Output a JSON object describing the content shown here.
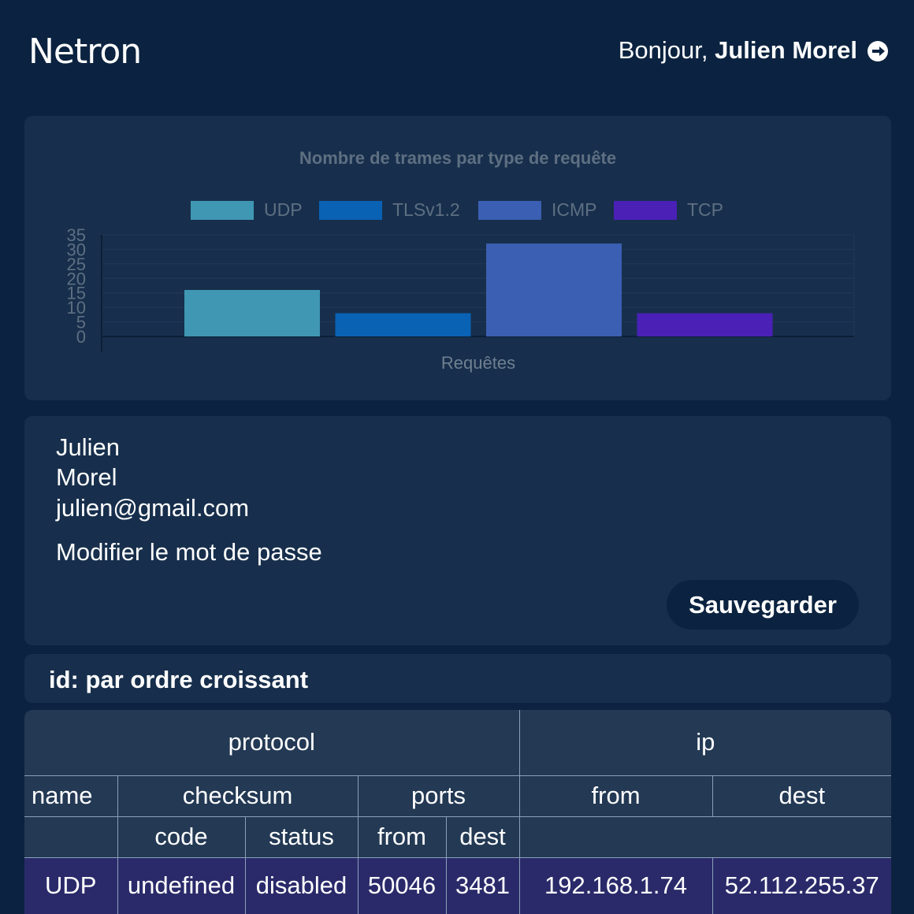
{
  "header": {
    "logo": "Netron",
    "greeting_prefix": "Bonjour, ",
    "user_name": "Julien Morel",
    "logout_icon": "logout-icon"
  },
  "chart_data": {
    "type": "bar",
    "title": "Nombre de trames par type de requête",
    "xlabel": "Requêtes",
    "ylabel": "",
    "ylim": [
      0,
      35
    ],
    "yticks": [
      0,
      5,
      10,
      15,
      20,
      25,
      30,
      35
    ],
    "legend_position": "top",
    "grid": true,
    "series": [
      {
        "name": "UDP",
        "value": 16,
        "color": "#3f97b3"
      },
      {
        "name": "TLSv1.2",
        "value": 8,
        "color": "#0a62b5"
      },
      {
        "name": "ICMP",
        "value": 32,
        "color": "#3b5fb2"
      },
      {
        "name": "TCP",
        "value": 8,
        "color": "#4a20b6"
      }
    ]
  },
  "profile": {
    "first_name": "Julien",
    "last_name": "Morel",
    "email": "julien@gmail.com",
    "change_password_label": "Modifier le mot de passe",
    "save_label": "Sauvegarder"
  },
  "sort": {
    "label": "id: par ordre croissant"
  },
  "table": {
    "group_protocol": "protocol",
    "group_ip": "ip",
    "col_name": "name",
    "col_checksum": "checksum",
    "col_ports": "ports",
    "col_ip_from": "from",
    "col_ip_dest": "dest",
    "sub_code": "code",
    "sub_status": "status",
    "sub_port_from": "from",
    "sub_port_dest": "dest",
    "rows": [
      {
        "name": "UDP",
        "code": "undefined",
        "status": "disabled",
        "port_from": "50046",
        "port_dest": "3481",
        "ip_from": "192.168.1.74",
        "ip_dest": "52.112.255.37"
      }
    ]
  }
}
